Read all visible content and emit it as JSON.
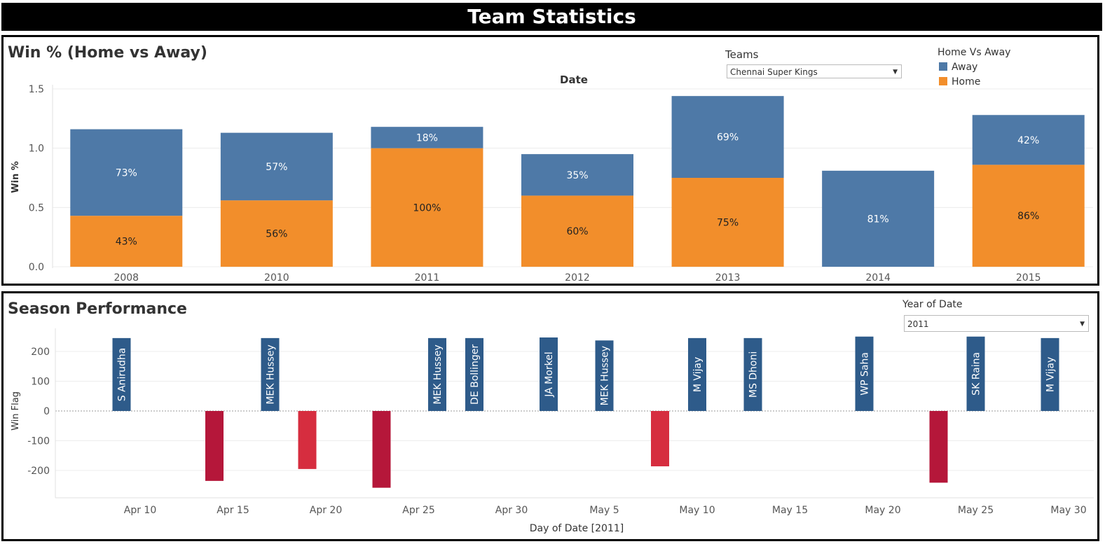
{
  "page_title": "Team Statistics",
  "panel1": {
    "title": "Win % (Home vs Away)",
    "date_header": "Date",
    "teams_filter": {
      "label": "Teams",
      "value": "Chennai Super Kings"
    },
    "legend": {
      "title": "Home Vs Away",
      "items": [
        "Away",
        "Home"
      ]
    }
  },
  "panel2": {
    "title": "Season Performance",
    "year_filter": {
      "label": "Year of Date",
      "value": "2011"
    }
  },
  "colors": {
    "away": "#4e79a7",
    "home": "#f28e2b",
    "win": "#2e5b8a",
    "loss_dark": "#b5173a",
    "loss_light": "#d62d3f"
  },
  "chart_data": [
    {
      "type": "bar",
      "stacked": true,
      "title": "Win % (Home vs Away)",
      "xlabel": "Date",
      "ylabel": "Win %",
      "categories": [
        "2008",
        "2010",
        "2011",
        "2012",
        "2013",
        "2014",
        "2015"
      ],
      "series": [
        {
          "name": "Home",
          "values": [
            0.43,
            0.56,
            1.0,
            0.6,
            0.75,
            0,
            0.86
          ],
          "labels": [
            "43%",
            "56%",
            "100%",
            "60%",
            "75%",
            "",
            "86%"
          ]
        },
        {
          "name": "Away",
          "values": [
            0.73,
            0.57,
            0.18,
            0.35,
            0.69,
            0.81,
            0.42
          ],
          "labels": [
            "73%",
            "57%",
            "18%",
            "35%",
            "69%",
            "81%",
            "42%"
          ]
        }
      ],
      "ylim": [
        0,
        1.5
      ],
      "yticks": [
        "0.0",
        "0.5",
        "1.0",
        "1.5"
      ],
      "legend": "top-right",
      "grid": true
    },
    {
      "type": "bar",
      "title": "Season Performance",
      "xlabel": "Day of Date [2011]",
      "ylabel": "Win Flag",
      "ylim": [
        -270,
        270
      ],
      "yticks": [
        "-200",
        "-100",
        "0",
        "100",
        "200"
      ],
      "xticks": [
        "Apr 10",
        "Apr 15",
        "Apr 20",
        "Apr 25",
        "Apr 30",
        "May 5",
        "May 10",
        "May 15",
        "May 20",
        "May 25",
        "May 30"
      ],
      "grid": true,
      "points": [
        {
          "date": "2011-04-09",
          "value": 245,
          "label": "S Anirudha",
          "result": "win"
        },
        {
          "date": "2011-04-14",
          "value": -235,
          "label": "",
          "result": "loss_dark"
        },
        {
          "date": "2011-04-17",
          "value": 245,
          "label": "MEK Hussey",
          "result": "win"
        },
        {
          "date": "2011-04-19",
          "value": -195,
          "label": "",
          "result": "loss_light"
        },
        {
          "date": "2011-04-23",
          "value": -258,
          "label": "",
          "result": "loss_dark"
        },
        {
          "date": "2011-04-26",
          "value": 245,
          "label": "MEK Hussey",
          "result": "win"
        },
        {
          "date": "2011-04-28",
          "value": 245,
          "label": "DE Bollinger",
          "result": "win"
        },
        {
          "date": "2011-05-02",
          "value": 247,
          "label": "JA Morkel",
          "result": "win"
        },
        {
          "date": "2011-05-05",
          "value": 237,
          "label": "MEK Hussey",
          "result": "win"
        },
        {
          "date": "2011-05-08",
          "value": -186,
          "label": "",
          "result": "loss_light"
        },
        {
          "date": "2011-05-10",
          "value": 245,
          "label": "M Vijay",
          "result": "win"
        },
        {
          "date": "2011-05-13",
          "value": 245,
          "label": "MS Dhoni",
          "result": "win"
        },
        {
          "date": "2011-05-19",
          "value": 250,
          "label": "WP Saha",
          "result": "win"
        },
        {
          "date": "2011-05-23",
          "value": -241,
          "label": "",
          "result": "loss_dark"
        },
        {
          "date": "2011-05-25",
          "value": 250,
          "label": "SK Raina",
          "result": "win"
        },
        {
          "date": "2011-05-29",
          "value": 245,
          "label": "M Vijay",
          "result": "win"
        }
      ]
    }
  ]
}
